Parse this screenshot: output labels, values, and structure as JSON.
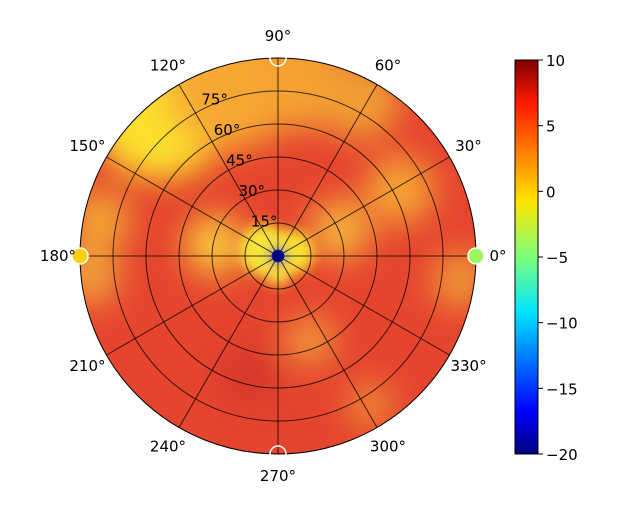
{
  "chart_data": {
    "type": "heatmap",
    "projection": "polar",
    "angular_tick_labels": [
      "0°",
      "30°",
      "60°",
      "90°",
      "120°",
      "150°",
      "180°",
      "210°",
      "240°",
      "270°",
      "300°",
      "330°"
    ],
    "angular_ticks_deg": [
      0,
      30,
      60,
      90,
      120,
      150,
      180,
      210,
      240,
      270,
      300,
      330
    ],
    "radial_tick_labels": [
      "15°",
      "30°",
      "45°",
      "60°",
      "75°"
    ],
    "radial_ticks": [
      15,
      30,
      45,
      60,
      75
    ],
    "radial_range": [
      0,
      90
    ],
    "grid": true,
    "colormap": "jet-like (dark blue → blue → cyan → green → yellow → orange → red → dark red)",
    "colorbar": {
      "range": [
        -20,
        10
      ],
      "tick_labels": [
        "10",
        "5",
        "0",
        "−5",
        "−10",
        "−15",
        "−20"
      ],
      "ticks": [
        10,
        5,
        0,
        -5,
        -10,
        -15,
        -20
      ],
      "placement": "right"
    },
    "markers": [
      {
        "angle_deg": 0,
        "radius": 90,
        "value": -4
      },
      {
        "angle_deg": 180,
        "radius": 90,
        "value": 0
      },
      {
        "angle_deg": 90,
        "radius": 90,
        "value": 10,
        "style": "open"
      },
      {
        "angle_deg": 270,
        "radius": 90,
        "value": 10,
        "style": "open"
      },
      {
        "angle_deg": 0,
        "radius": 0,
        "value": -20
      }
    ],
    "field_description": "Mostly red (≈5) across the dish; yellow (≈0–2) core near zenith; warm yellow/orange lobes toward 100°–150° at the rim and along the 20°–40° / 160°–200° bands; dark blue spot at centre.",
    "field_samples": [
      {
        "angle_deg": 0,
        "radius": 0,
        "value": -20
      },
      {
        "angle_deg": 0,
        "radius": 10,
        "value": 1
      },
      {
        "angle_deg": 90,
        "radius": 10,
        "value": 2
      },
      {
        "angle_deg": 180,
        "radius": 15,
        "value": 0
      },
      {
        "angle_deg": 270,
        "radius": 15,
        "value": 3
      },
      {
        "angle_deg": 130,
        "radius": 85,
        "value": 0
      },
      {
        "angle_deg": 90,
        "radius": 70,
        "value": 3
      },
      {
        "angle_deg": 40,
        "radius": 50,
        "value": 3
      },
      {
        "angle_deg": 180,
        "radius": 90,
        "value": 1
      },
      {
        "angle_deg": 250,
        "radius": 60,
        "value": 7
      },
      {
        "angle_deg": 320,
        "radius": 80,
        "value": 5
      }
    ]
  }
}
